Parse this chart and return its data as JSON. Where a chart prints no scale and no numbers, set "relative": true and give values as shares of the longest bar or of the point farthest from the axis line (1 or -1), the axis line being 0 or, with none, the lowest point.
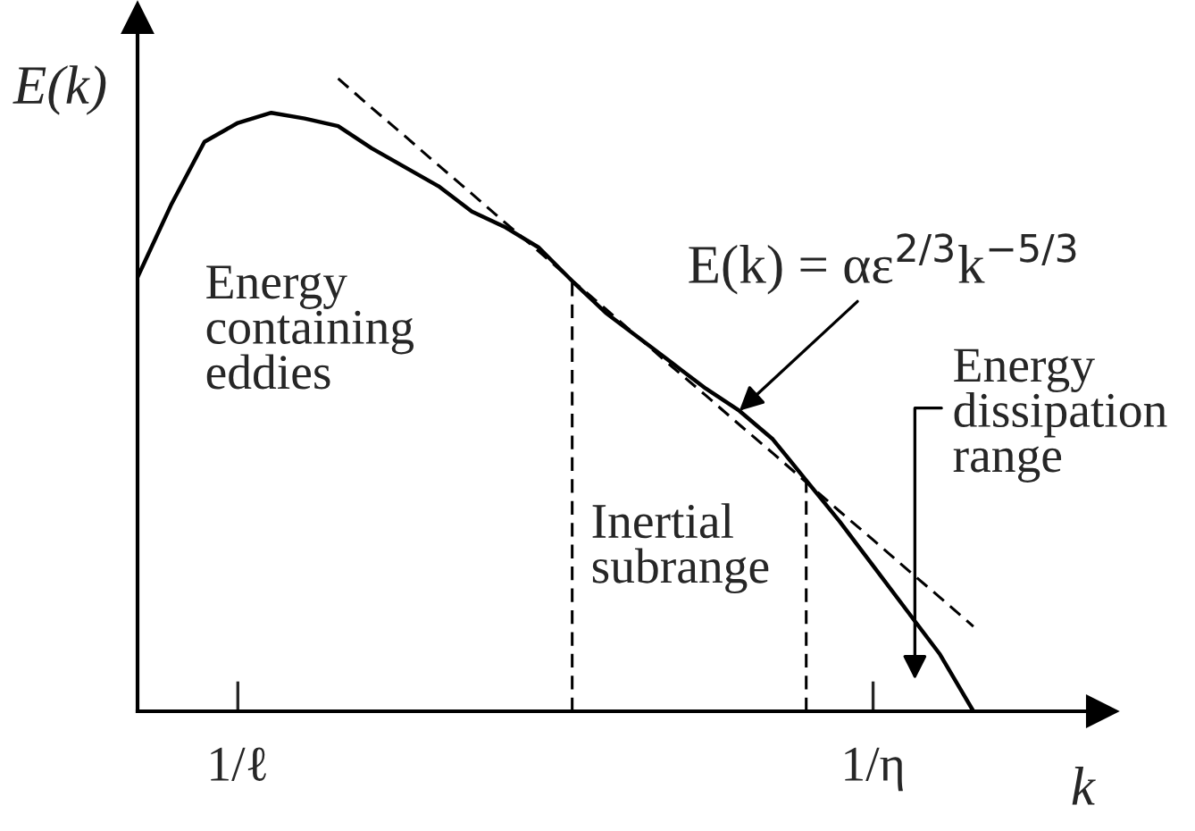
{
  "chart_data": {
    "type": "line",
    "relative": true,
    "xlabel": "k",
    "ylabel": "E(k)",
    "categories": [
      null,
      null,
      null,
      "1/ℓ",
      null,
      null,
      null,
      null,
      null,
      null,
      null,
      null,
      null,
      null,
      null,
      null,
      null,
      null,
      null,
      null,
      null,
      null,
      "1/η",
      null,
      null,
      null
    ],
    "series": [
      {
        "color": "#000000",
        "line_style": "solid",
        "values": [
          0.686,
          0.8,
          0.9,
          0.93,
          0.946,
          0.937,
          0.925,
          0.89,
          0.86,
          0.83,
          0.79,
          0.765,
          0.733,
          0.68,
          0.63,
          0.59,
          0.55,
          0.51,
          0.475,
          0.43,
          0.365,
          0.3,
          0.23,
          0.16,
          0.09,
          0
        ]
      },
      {
        "color": "#000000",
        "line_style": "dashed",
        "values": [
          null,
          null,
          null,
          null,
          null,
          null,
          1.0,
          0.954,
          0.909,
          0.863,
          0.818,
          0.772,
          0.727,
          0.681,
          0.636,
          0.59,
          0.544,
          0.499,
          0.453,
          0.408,
          0.362,
          0.316,
          0.271,
          0.225,
          0.18,
          0.134
        ]
      }
    ],
    "annotations": [
      "Energy\ncontaining\neddies",
      "Inertial\nsubrange",
      "E(k) = αε$^{2/3}$k$^{−5/3}$",
      "Energy\ndissipation\nrange"
    ],
    "marker": "none"
  }
}
